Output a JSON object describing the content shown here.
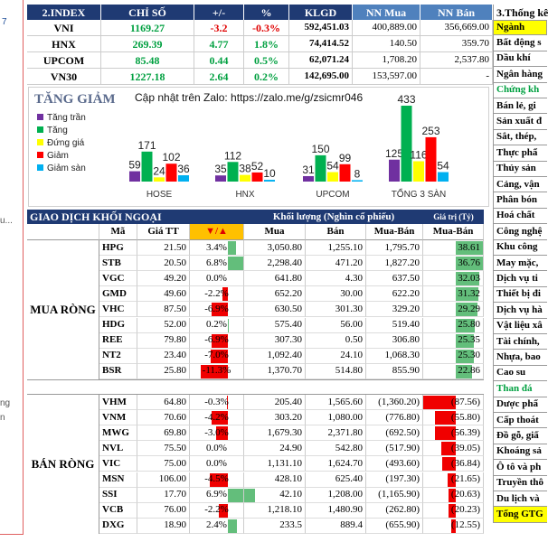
{
  "left_strip": [
    "7",
    "u...",
    "ng",
    "n"
  ],
  "index_table": {
    "headers": [
      "2.INDEX",
      "CHỈ SỐ",
      "+/-",
      "%",
      "KLGD",
      "NN Mua",
      "NN Bán"
    ],
    "rows": [
      [
        "VNI",
        "1169.27",
        "-3.2",
        "-0.3%",
        "592,451.03",
        "400,889.00",
        "356,669.00"
      ],
      [
        "HNX",
        "269.39",
        "4.77",
        "1.8%",
        "74,414.52",
        "140.50",
        "359.70"
      ],
      [
        "UPCOM",
        "85.48",
        "0.44",
        "0.5%",
        "62,071.24",
        "1,708.20",
        "2,537.80"
      ],
      [
        "VN30",
        "1227.18",
        "2.64",
        "0.2%",
        "142,695.00",
        "153,597.00",
        "-"
      ]
    ]
  },
  "breadth_chart": {
    "type": "bar",
    "title": "TĂNG GIẢM",
    "subtitle": "Cập nhật trên Zalo: https://zalo.me/g/zsicmr046",
    "categories": [
      "HOSE",
      "HNX",
      "UPCOM",
      "TỔNG 3 SÀN"
    ],
    "series": [
      {
        "name": "Tăng trần",
        "color": "#7030a0",
        "values": [
          59,
          35,
          31,
          125
        ]
      },
      {
        "name": "Tăng",
        "color": "#00b050",
        "values": [
          171,
          112,
          150,
          433
        ]
      },
      {
        "name": "Đứng giá",
        "color": "#ffff00",
        "values": [
          24,
          38,
          54,
          116
        ]
      },
      {
        "name": "Giảm",
        "color": "#ff0000",
        "values": [
          102,
          52,
          99,
          253
        ]
      },
      {
        "name": "Giảm sàn",
        "color": "#00b0f0",
        "values": [
          36,
          10,
          8,
          54
        ]
      }
    ]
  },
  "foreign_table": {
    "title": "GIAO DỊCH KHỐI NGOẠI",
    "volume_header": "Khối lượng (Nghìn cổ phiếu)",
    "value_header": "Giá trị (Tỷ)",
    "headers": [
      "Mã",
      "Giá TT",
      "▼/▲",
      "Mua",
      "Bán",
      "Mua-Bán",
      "Mua-Bán"
    ],
    "groups": [
      {
        "label": "MUA RÒNG",
        "rows": [
          [
            "HPG",
            "21.50",
            "3.4%",
            "3,050.80",
            "1,255.10",
            "1,795.70",
            "38.61"
          ],
          [
            "STB",
            "20.50",
            "6.8%",
            "2,298.40",
            "471.20",
            "1,827.20",
            "36.76"
          ],
          [
            "VGC",
            "49.20",
            "0.0%",
            "641.80",
            "4.30",
            "637.50",
            "32.03"
          ],
          [
            "GMD",
            "49.60",
            "-2.2%",
            "652.20",
            "30.00",
            "622.20",
            "31.32"
          ],
          [
            "VHC",
            "87.50",
            "-6.9%",
            "630.50",
            "301.30",
            "329.20",
            "29.29"
          ],
          [
            "HDG",
            "52.00",
            "0.2%",
            "575.40",
            "56.00",
            "519.40",
            "25.80"
          ],
          [
            "REE",
            "79.80",
            "-6.9%",
            "307.30",
            "0.50",
            "306.80",
            "25.35"
          ],
          [
            "NT2",
            "23.40",
            "-7.0%",
            "1,092.40",
            "24.10",
            "1,068.30",
            "25.30"
          ],
          [
            "BSR",
            "25.80",
            "-11.3%",
            "1,370.70",
            "514.80",
            "855.90",
            "22.86"
          ]
        ]
      },
      {
        "label": "BÁN RÒNG",
        "rows": [
          [
            "VHM",
            "64.80",
            "-0.3%",
            "205.40",
            "1,565.60",
            "(1,360.20)",
            "(87.56)"
          ],
          [
            "VNM",
            "70.60",
            "-4.2%",
            "303.20",
            "1,080.00",
            "(776.80)",
            "(55.80)"
          ],
          [
            "MWG",
            "69.80",
            "-3.0%",
            "1,679.30",
            "2,371.80",
            "(692.50)",
            "(56.39)"
          ],
          [
            "NVL",
            "75.50",
            "0.0%",
            "24.90",
            "542.80",
            "(517.90)",
            "(39.05)"
          ],
          [
            "VIC",
            "75.00",
            "0.0%",
            "1,131.10",
            "1,624.70",
            "(493.60)",
            "(36.84)"
          ],
          [
            "MSN",
            "106.00",
            "-4.5%",
            "428.10",
            "625.40",
            "(197.30)",
            "(21.65)"
          ],
          [
            "SSI",
            "17.70",
            "6.9%",
            "42.10",
            "1,208.00",
            "(1,165.90)",
            "(20.63)"
          ],
          [
            "VCB",
            "76.00",
            "-2.2%",
            "1,218.10",
            "1,480.90",
            "(262.80)",
            "(20.23)"
          ],
          [
            "DXG",
            "18.90",
            "2.4%",
            "233.5",
            "889.4",
            "(655.90)",
            "(12.55)"
          ]
        ]
      }
    ]
  },
  "sector_table": {
    "title": "3.Thống kê",
    "header": "Ngành",
    "rows": [
      "Bất động s",
      "Dầu khí",
      "Ngân hàng",
      "Chứng kh",
      "Bán lẻ, gi",
      "Sản xuất đ",
      "Sắt, thép,",
      "Thực phẩ",
      "Thủy sản",
      "Cảng, vận",
      "Phân bón",
      "Hoá chất",
      "Công nghệ",
      "Khu công",
      "May mặc,",
      "Dịch vụ ti",
      "Thiết bị đi",
      "Dịch vụ hà",
      "Vật liệu xâ",
      "Tài chính,",
      "Nhựa, bao",
      "Cao su",
      "Than đá",
      "Dược phẩ",
      "Cấp thoát",
      "Đồ gỗ, giấ",
      "Khoáng sả",
      "Ô tô và ph",
      "Truyền thô",
      "Du lịch và",
      "Tổng GTG"
    ]
  }
}
